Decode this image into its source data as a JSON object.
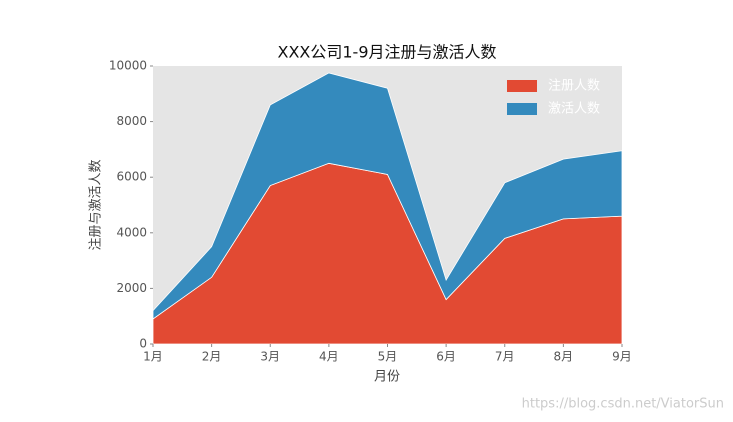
{
  "chart_data": {
    "type": "stackedarea",
    "title": "XXX公司1-9月注册与激活人数",
    "xlabel": "月份",
    "ylabel": "注册与激活人数",
    "categories": [
      "1月",
      "2月",
      "3月",
      "4月",
      "5月",
      "6月",
      "7月",
      "8月",
      "9月"
    ],
    "series": [
      {
        "name": "注册人数",
        "color": "#e24a33",
        "values": [
          900,
          2400,
          5700,
          6500,
          6100,
          1600,
          3800,
          4500,
          4600
        ]
      },
      {
        "name": "激活人数",
        "color": "#348abd",
        "values": [
          300,
          1100,
          2900,
          3250,
          3100,
          700,
          2000,
          2150,
          2350
        ]
      }
    ],
    "ylim": [
      0,
      10000
    ],
    "yticks": [
      0,
      2000,
      4000,
      6000,
      8000,
      10000
    ],
    "grid": false,
    "legend": "upper right",
    "background": "#e5e5e5",
    "watermark": "https://blog.csdn.net/ViatorSun"
  }
}
